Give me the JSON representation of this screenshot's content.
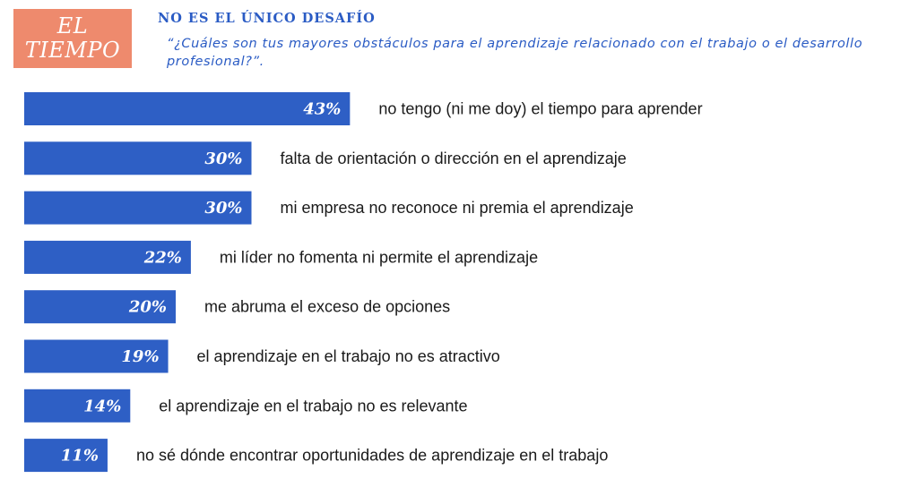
{
  "badge": {
    "line1": "EL",
    "line2": "TIEMPO"
  },
  "heading": "NO ES EL ÚNICO DESAFÍO",
  "question": "“¿Cuáles son tus mayores obstáculos para el aprendizaje relacionado con el trabajo o el desarrollo profesional?”.",
  "colors": {
    "bar": "#2e5fc5",
    "badge": "#ee8a6d",
    "heading": "#2a5bc4"
  },
  "chart_data": {
    "type": "bar",
    "orientation": "horizontal",
    "title": "",
    "xlabel": "",
    "ylabel": "",
    "xlim": [
      0,
      100
    ],
    "grid": false,
    "legend": "none",
    "categories": [
      "no tengo (ni me doy) el tiempo para aprender",
      "falta de orientación o dirección en el aprendizaje",
      "mi empresa no reconoce ni premia el aprendizaje",
      "mi líder no fomenta ni permite el aprendizaje",
      "me abruma el exceso de opciones",
      "el aprendizaje en el trabajo no es atractivo",
      "el aprendizaje en el trabajo no es relevante",
      "no sé dónde encontrar oportunidades de aprendizaje en el trabajo"
    ],
    "values": [
      43,
      30,
      30,
      22,
      20,
      19,
      14,
      11
    ],
    "value_labels": [
      "43%",
      "30%",
      "30%",
      "22%",
      "20%",
      "19%",
      "14%",
      "11%"
    ]
  }
}
